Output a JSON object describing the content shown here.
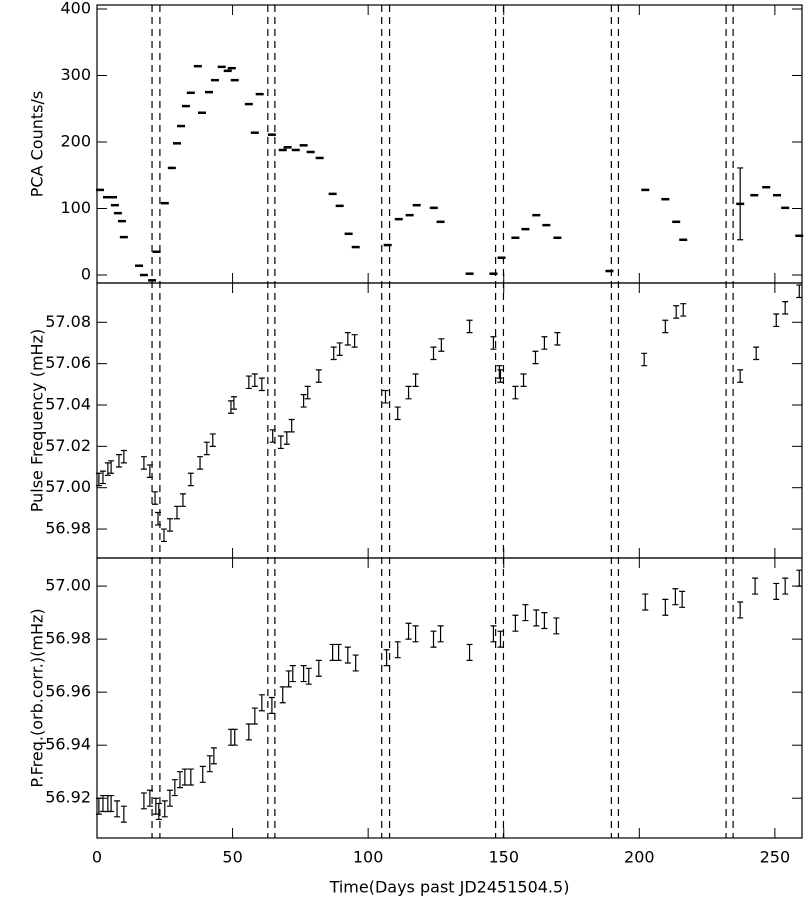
{
  "chart_data": [
    {
      "type": "errorbar",
      "marker": "dash",
      "ylabel": "PCA Counts/s",
      "x": [
        1.1,
        3.7,
        5.9,
        6.6,
        7.7,
        9.2,
        9.9,
        15.5,
        17.3,
        20.3,
        22,
        25,
        27.6,
        29.5,
        31,
        32.8,
        34.6,
        37.2,
        38.7,
        41.3,
        43.5,
        46,
        48.2,
        49.7,
        50.8,
        56,
        58.2,
        60,
        64.5,
        68.5,
        70.3,
        73.3,
        76.2,
        78.8,
        82.1,
        86.9,
        89.5,
        92.8,
        95.4,
        107.2,
        111.3,
        115.3,
        117.9,
        124.2,
        126.7,
        137.4,
        146.2,
        149.2,
        154.3,
        158,
        162,
        165.7,
        169.8,
        189,
        202.2,
        209.6,
        213.6,
        216.2,
        237.2,
        242.4,
        246.8,
        250.8,
        253.8,
        259
      ],
      "values": [
        128,
        117,
        117,
        105,
        93,
        81,
        57,
        14,
        0,
        -8,
        35,
        108,
        161,
        198,
        224,
        254,
        274,
        314,
        244,
        275,
        293,
        313,
        307,
        311,
        293,
        257,
        214,
        272,
        211,
        188,
        192,
        188,
        195,
        185,
        176,
        122,
        104,
        62,
        42,
        45,
        84,
        90,
        105,
        101,
        80,
        2,
        2,
        26,
        56,
        69,
        90,
        75,
        56,
        6,
        128,
        114,
        80,
        53,
        107,
        120,
        132,
        120,
        101,
        59
      ],
      "yerr": [
        0,
        0,
        0,
        0,
        0,
        0,
        0,
        0,
        0,
        0,
        0,
        0,
        0,
        0,
        0,
        0,
        0,
        0,
        0,
        0,
        0,
        0,
        0,
        0,
        0,
        0,
        0,
        0,
        0,
        0,
        0,
        0,
        0,
        0,
        0,
        0,
        0,
        0,
        0,
        0,
        0,
        0,
        0,
        0,
        0,
        0,
        0,
        0,
        0,
        0,
        0,
        0,
        0,
        0,
        0,
        0,
        0,
        0,
        54,
        0,
        0,
        0,
        0,
        0
      ],
      "xlim": [
        0,
        260
      ],
      "ylim": [
        -12,
        406
      ],
      "yticks": [
        0,
        100,
        200,
        300,
        400
      ],
      "vlines": [
        20.3,
        23.2,
        63,
        65.6,
        105,
        107.9,
        147,
        149.9,
        189.7,
        192.3,
        232,
        234.6
      ]
    },
    {
      "type": "errorbar",
      "marker": "ibeam",
      "ylabel": "Pulse Frequency (mHz)",
      "x": [
        0.7,
        2.2,
        4,
        5.2,
        8.1,
        9.9,
        17.3,
        19.5,
        21.4,
        22.5,
        24.7,
        26.9,
        29.5,
        31.7,
        34.6,
        38,
        40.5,
        42.7,
        49.4,
        50.5,
        56,
        58.2,
        60.8,
        64.8,
        67.8,
        70,
        71.8,
        76.2,
        77.7,
        81.8,
        87.3,
        89.5,
        92.5,
        95,
        106.4,
        110.9,
        114.9,
        117.5,
        124.1,
        127,
        137.4,
        146.2,
        148.4,
        148.8,
        154.3,
        157.3,
        161.7,
        165,
        169.8,
        201.8,
        209.6,
        213.6,
        216.2,
        237.2,
        243.1,
        250.5,
        253.8,
        259
      ],
      "values": [
        57.004,
        57.005,
        57.009,
        57.01,
        57.013,
        57.015,
        57.012,
        57.008,
        56.995,
        56.985,
        56.977,
        56.982,
        56.988,
        56.994,
        57.004,
        57.012,
        57.019,
        57.023,
        57.039,
        57.041,
        57.051,
        57.052,
        57.05,
        57.025,
        57.022,
        57.024,
        57.03,
        57.042,
        57.046,
        57.054,
        57.065,
        57.067,
        57.072,
        57.071,
        57.044,
        57.036,
        57.046,
        57.052,
        57.065,
        57.069,
        57.078,
        57.07,
        57.056,
        57.054,
        57.046,
        57.052,
        57.063,
        57.07,
        57.072,
        57.062,
        57.078,
        57.085,
        57.086,
        57.054,
        57.065,
        57.081,
        57.087,
        57.095
      ],
      "yerr": 0.003,
      "xlim": [
        0,
        260
      ],
      "ylim": [
        56.966,
        57.099
      ],
      "yticks": [
        56.98,
        {
          "value": 57.0,
          "label": "57.00"
        },
        57.02,
        57.04,
        57.06,
        57.08
      ]
    },
    {
      "type": "errorbar",
      "marker": "ibeam",
      "ylabel": "P.Freq.(orb.corr.)(mHz)",
      "xlabel": "Time(Days past JD2451504.5)",
      "x": [
        0.7,
        2.2,
        4,
        5.2,
        7.4,
        9.9,
        17.3,
        19.5,
        21.7,
        22.8,
        25,
        26.9,
        28.7,
        30.6,
        32.4,
        34.6,
        39,
        41.6,
        43.1,
        49.4,
        50.8,
        56,
        58.2,
        60.8,
        64.5,
        68.5,
        70.7,
        72.2,
        76.2,
        78.1,
        81.8,
        86.9,
        89.1,
        92.5,
        95.4,
        106.8,
        110.9,
        114.9,
        117.5,
        124.1,
        126.7,
        137.4,
        146.2,
        148.8,
        154.3,
        158,
        162,
        165,
        169.4,
        202.2,
        209.6,
        213.3,
        215.8,
        237.2,
        242.7,
        250.5,
        253.8,
        259
      ],
      "values": [
        56.917,
        56.918,
        56.918,
        56.918,
        56.916,
        56.914,
        56.919,
        56.92,
        56.917,
        56.915,
        56.916,
        56.92,
        56.924,
        56.927,
        56.928,
        56.928,
        56.929,
        56.933,
        56.936,
        56.943,
        56.943,
        56.945,
        56.951,
        56.956,
        56.955,
        56.959,
        56.965,
        56.967,
        56.967,
        56.966,
        56.969,
        56.975,
        56.975,
        56.974,
        56.971,
        56.973,
        56.976,
        56.983,
        56.982,
        56.98,
        56.982,
        56.975,
        56.982,
        56.98,
        56.986,
        56.99,
        56.988,
        56.987,
        56.985,
        56.994,
        56.992,
        56.996,
        56.995,
        56.991,
        57.0,
        56.998,
        57.0,
        57.003
      ],
      "yerr": 0.003,
      "xlim": [
        0,
        260
      ],
      "ylim": [
        56.905,
        57.0106
      ],
      "xticks": [
        0,
        50,
        100,
        150,
        200,
        250
      ],
      "yticks": [
        56.92,
        56.94,
        56.96,
        56.98,
        {
          "value": 57.0,
          "label": "57.00"
        }
      ]
    }
  ]
}
